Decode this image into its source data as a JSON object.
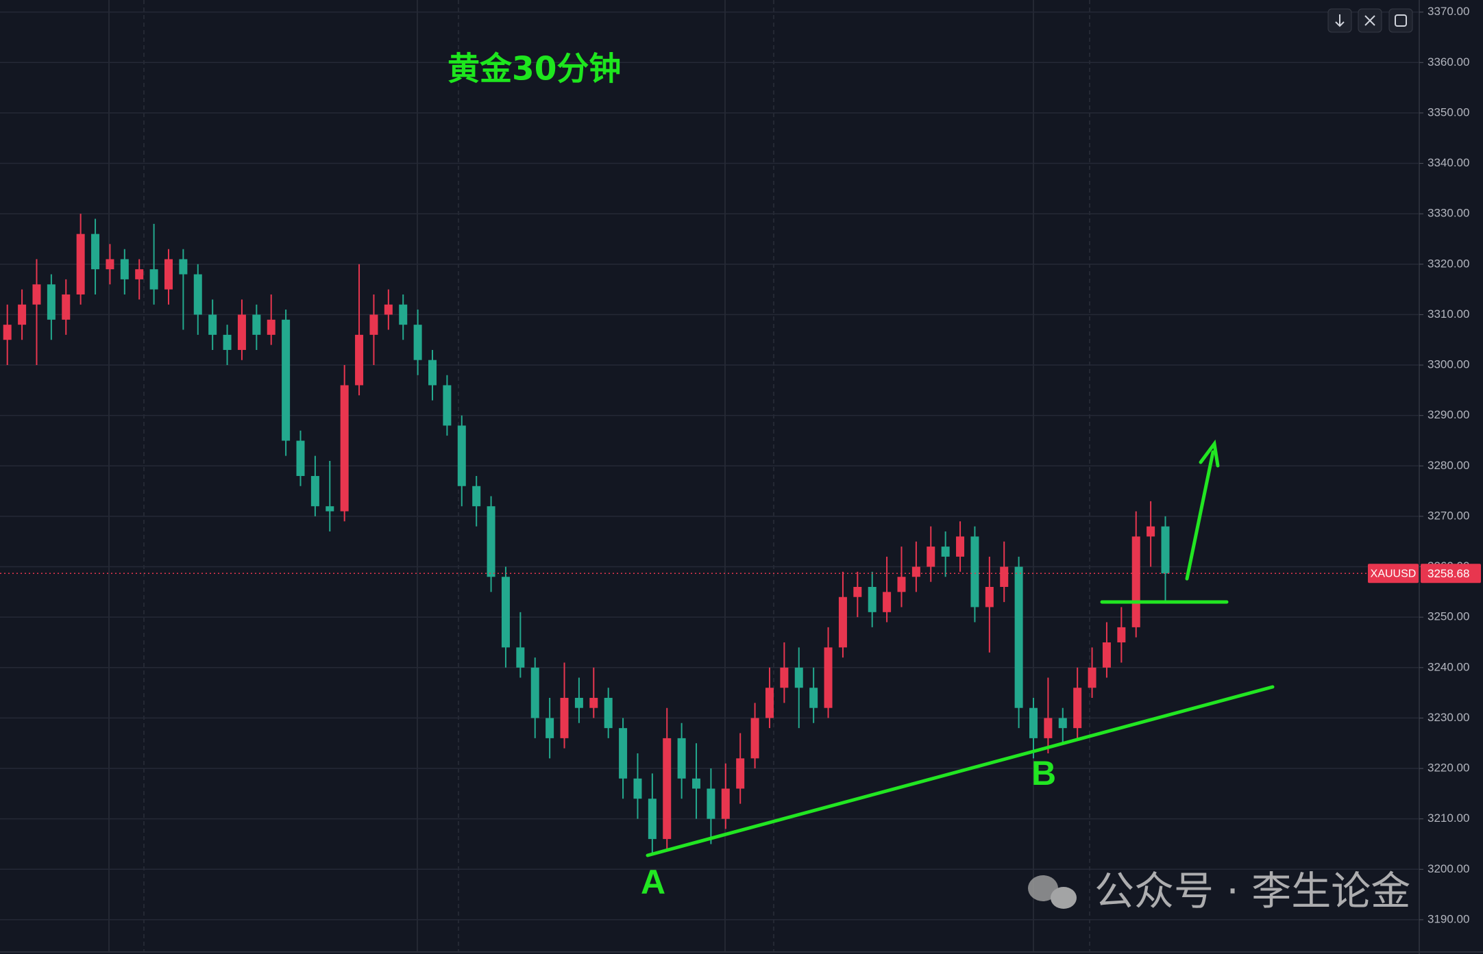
{
  "chart_data": {
    "type": "candlestick",
    "title": "黄金30分钟",
    "symbol": "XAUUSD",
    "last_price": 3258.68,
    "ylim": [
      3183.2,
      3372.4
    ],
    "yticks": [
      {
        "value": 3190,
        "label": "3190.00"
      },
      {
        "value": 3200,
        "label": "3200.00"
      },
      {
        "value": 3210,
        "label": "3210.00"
      },
      {
        "value": 3220,
        "label": "3220.00"
      },
      {
        "value": 3230,
        "label": "3230.00"
      },
      {
        "value": 3240,
        "label": "3240.00"
      },
      {
        "value": 3250,
        "label": "3250.00"
      },
      {
        "value": 3260,
        "label": "3260.00"
      },
      {
        "value": 3270,
        "label": "3270.00"
      },
      {
        "value": 3280,
        "label": "3280.00"
      },
      {
        "value": 3290,
        "label": "3290.00"
      },
      {
        "value": 3300,
        "label": "3300.00"
      },
      {
        "value": 3310,
        "label": "3310.00"
      },
      {
        "value": 3320,
        "label": "3320.00"
      },
      {
        "value": 3330,
        "label": "3330.00"
      },
      {
        "value": 3340,
        "label": "3340.00"
      },
      {
        "value": 3350,
        "label": "3350.00"
      },
      {
        "value": 3360,
        "label": "3360.00"
      },
      {
        "value": 3370,
        "label": "3370.00"
      }
    ],
    "grid": true,
    "up_color": "#e8364f",
    "down_color": "#23a98e",
    "candles": [
      [
        3305,
        3312,
        3300,
        3308
      ],
      [
        3308,
        3315,
        3305,
        3312
      ],
      [
        3312,
        3321,
        3300,
        3316
      ],
      [
        3316,
        3318,
        3305,
        3309
      ],
      [
        3309,
        3317,
        3306,
        3314
      ],
      [
        3314,
        3330,
        3312,
        3326
      ],
      [
        3326,
        3329,
        3314,
        3319
      ],
      [
        3319,
        3324,
        3316,
        3321
      ],
      [
        3321,
        3323,
        3314,
        3317
      ],
      [
        3317,
        3321,
        3313,
        3319
      ],
      [
        3319,
        3328,
        3312,
        3315
      ],
      [
        3315,
        3323,
        3312,
        3321
      ],
      [
        3321,
        3323,
        3307,
        3318
      ],
      [
        3318,
        3320,
        3306,
        3310
      ],
      [
        3310,
        3313,
        3303,
        3306
      ],
      [
        3306,
        3308,
        3300,
        3303
      ],
      [
        3303,
        3313,
        3301,
        3310
      ],
      [
        3310,
        3312,
        3303,
        3306
      ],
      [
        3306,
        3314,
        3304,
        3309
      ],
      [
        3309,
        3311,
        3282,
        3285
      ],
      [
        3285,
        3287,
        3276,
        3278
      ],
      [
        3278,
        3282,
        3270,
        3272
      ],
      [
        3272,
        3281,
        3267,
        3271
      ],
      [
        3271,
        3300,
        3269,
        3296
      ],
      [
        3296,
        3320,
        3294,
        3306
      ],
      [
        3306,
        3314,
        3300,
        3310
      ],
      [
        3310,
        3315,
        3307,
        3312
      ],
      [
        3312,
        3314,
        3305,
        3308
      ],
      [
        3308,
        3311,
        3298,
        3301
      ],
      [
        3301,
        3303,
        3293,
        3296
      ],
      [
        3296,
        3298,
        3286,
        3288
      ],
      [
        3288,
        3290,
        3272,
        3276
      ],
      [
        3276,
        3278,
        3268,
        3272
      ],
      [
        3272,
        3274,
        3255,
        3258
      ],
      [
        3258,
        3260,
        3240,
        3244
      ],
      [
        3244,
        3251,
        3238,
        3240
      ],
      [
        3240,
        3242,
        3226,
        3230
      ],
      [
        3230,
        3234,
        3222,
        3226
      ],
      [
        3226,
        3241,
        3224,
        3234
      ],
      [
        3234,
        3238,
        3229,
        3232
      ],
      [
        3232,
        3240,
        3230,
        3234
      ],
      [
        3234,
        3236,
        3226,
        3228
      ],
      [
        3228,
        3230,
        3214,
        3218
      ],
      [
        3218,
        3223,
        3210,
        3214
      ],
      [
        3214,
        3219,
        3203,
        3206
      ],
      [
        3206,
        3232,
        3204,
        3226
      ],
      [
        3226,
        3229,
        3214,
        3218
      ],
      [
        3218,
        3225,
        3210,
        3216
      ],
      [
        3216,
        3220,
        3205,
        3210
      ],
      [
        3210,
        3221,
        3208,
        3216
      ],
      [
        3216,
        3227,
        3213,
        3222
      ],
      [
        3222,
        3233,
        3220,
        3230
      ],
      [
        3230,
        3240,
        3228,
        3236
      ],
      [
        3236,
        3245,
        3233,
        3240
      ],
      [
        3240,
        3244,
        3228,
        3236
      ],
      [
        3236,
        3240,
        3229,
        3232
      ],
      [
        3232,
        3248,
        3230,
        3244
      ],
      [
        3244,
        3259,
        3242,
        3254
      ],
      [
        3254,
        3259,
        3250,
        3256
      ],
      [
        3256,
        3259,
        3248,
        3251
      ],
      [
        3251,
        3262,
        3249,
        3255
      ],
      [
        3255,
        3264,
        3252,
        3258
      ],
      [
        3258,
        3265,
        3255,
        3260
      ],
      [
        3260,
        3268,
        3257,
        3264
      ],
      [
        3264,
        3267,
        3258,
        3262
      ],
      [
        3262,
        3269,
        3259,
        3266
      ],
      [
        3266,
        3268,
        3249,
        3252
      ],
      [
        3252,
        3262,
        3243,
        3256
      ],
      [
        3256,
        3265,
        3253,
        3260
      ],
      [
        3260,
        3262,
        3228,
        3232
      ],
      [
        3232,
        3234,
        3222,
        3226
      ],
      [
        3226,
        3238,
        3223,
        3230
      ],
      [
        3230,
        3232,
        3225,
        3228
      ],
      [
        3228,
        3240,
        3226,
        3236
      ],
      [
        3236,
        3244,
        3234,
        3240
      ],
      [
        3240,
        3249,
        3238,
        3245
      ],
      [
        3245,
        3252,
        3241,
        3248
      ],
      [
        3248,
        3271,
        3246,
        3266
      ],
      [
        3266,
        3273,
        3260,
        3268
      ],
      [
        3268,
        3270,
        3253,
        3258.68
      ]
    ],
    "annotations": [
      "A",
      "B"
    ],
    "watermark": "公众号 · 李生论金"
  }
}
